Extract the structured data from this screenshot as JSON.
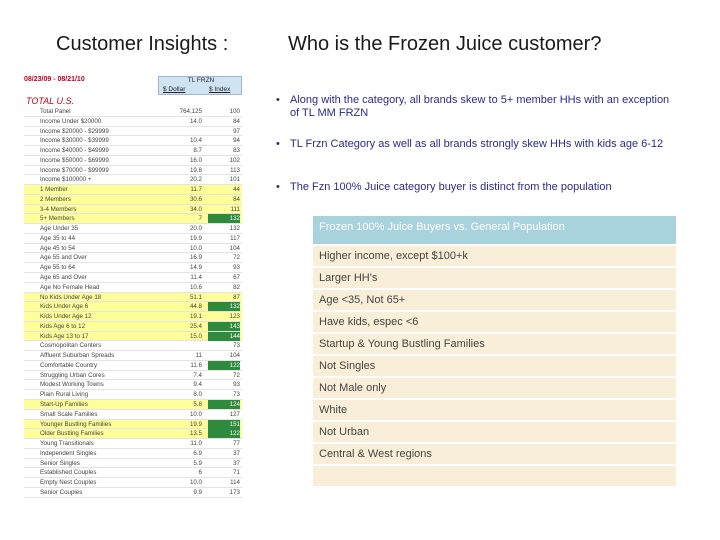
{
  "title": {
    "left": "Customer Insights :",
    "right": "Who is the Frozen Juice customer?"
  },
  "sheet": {
    "date_range": "08/23/09 - 08/21/10",
    "header_top": "TL FRZN",
    "header_col1": "$ Dollar",
    "header_col2": "$ Index",
    "total_label": "TOTAL U.S.",
    "rows": [
      {
        "label": "Total Panel",
        "v1": "764,125",
        "v2": "100",
        "yellow": false,
        "green": false
      },
      {
        "label": "Income Under $20000",
        "v1": "14.0",
        "v2": "84",
        "yellow": false,
        "green": false
      },
      {
        "label": "Income $20000 - $29999",
        "v1": "",
        "v2": "97",
        "yellow": false,
        "green": false
      },
      {
        "label": "Income $30000 - $39999",
        "v1": "10.4",
        "v2": "94",
        "yellow": false,
        "green": false
      },
      {
        "label": "Income $40000 - $49999",
        "v1": "8.7",
        "v2": "83",
        "yellow": false,
        "green": false
      },
      {
        "label": "Income $50000 - $69999",
        "v1": "16.0",
        "v2": "102",
        "yellow": false,
        "green": false
      },
      {
        "label": "Income $70000 - $99999",
        "v1": "19.8",
        "v2": "113",
        "yellow": false,
        "green": false
      },
      {
        "label": "Income $100000 +",
        "v1": "20.2",
        "v2": "101",
        "yellow": false,
        "green": false
      },
      {
        "label": "1 Member",
        "v1": "11.7",
        "v2": "44",
        "yellow": true,
        "green": false
      },
      {
        "label": "2 Members",
        "v1": "30.6",
        "v2": "84",
        "yellow": true,
        "green": false
      },
      {
        "label": "3-4 Members",
        "v1": "34.0",
        "v2": "111",
        "yellow": true,
        "green": false
      },
      {
        "label": "5+ Members",
        "v1": "7",
        "v2": "132",
        "yellow": true,
        "green": true
      },
      {
        "label": "Age Under 35",
        "v1": "20.0",
        "v2": "132",
        "yellow": false,
        "green": false
      },
      {
        "label": "Age 35 to 44",
        "v1": "19.9",
        "v2": "117",
        "yellow": false,
        "green": false
      },
      {
        "label": "Age 45 to 54",
        "v1": "10.0",
        "v2": "104",
        "yellow": false,
        "green": false
      },
      {
        "label": "Age 55 and Over",
        "v1": "16.9",
        "v2": "72",
        "yellow": false,
        "green": false
      },
      {
        "label": "Age 55 to 64",
        "v1": "14.9",
        "v2": "93",
        "yellow": false,
        "green": false
      },
      {
        "label": "Age 65 and Over",
        "v1": "11.4",
        "v2": "67",
        "yellow": false,
        "green": false
      },
      {
        "label": "Age No Female Head",
        "v1": "10.6",
        "v2": "82",
        "yellow": false,
        "green": false
      },
      {
        "label": "No Kids Under Age 18",
        "v1": "51.1",
        "v2": "87",
        "yellow": true,
        "green": false
      },
      {
        "label": "Kids Under Age 6",
        "v1": "44.8",
        "v2": "132",
        "yellow": true,
        "green": true
      },
      {
        "label": "Kids Under Age 12",
        "v1": "19.1",
        "v2": "123",
        "yellow": true,
        "green": false
      },
      {
        "label": "Kids Age 6 to 12",
        "v1": "25.4",
        "v2": "143",
        "yellow": true,
        "green": true
      },
      {
        "label": "Kids Age 13 to 17",
        "v1": "15.0",
        "v2": "144",
        "yellow": true,
        "green": true
      },
      {
        "label": "Cosmopolitan Centers",
        "v1": "",
        "v2": "73",
        "yellow": false,
        "green": false
      },
      {
        "label": "Affluent Suburban Spreads",
        "v1": "11",
        "v2": "104",
        "yellow": false,
        "green": false
      },
      {
        "label": "Comfortable Country",
        "v1": "11.6",
        "v2": "122",
        "yellow": false,
        "green": true
      },
      {
        "label": "Struggling Urban Cores",
        "v1": "7.4",
        "v2": "72",
        "yellow": false,
        "green": false
      },
      {
        "label": "Modest Working Towns",
        "v1": "9.4",
        "v2": "93",
        "yellow": false,
        "green": false
      },
      {
        "label": "Plain Rural Living",
        "v1": "8.0",
        "v2": "73",
        "yellow": false,
        "green": false
      },
      {
        "label": "Start-Up Families",
        "v1": "5.8",
        "v2": "124",
        "yellow": true,
        "green": true
      },
      {
        "label": "Small Scale Families",
        "v1": "10.0",
        "v2": "127",
        "yellow": false,
        "green": false
      },
      {
        "label": "Younger Bustling Families",
        "v1": "19.9",
        "v2": "151",
        "yellow": true,
        "green": true
      },
      {
        "label": "Older Bustling Families",
        "v1": "13.5",
        "v2": "122",
        "yellow": true,
        "green": true
      },
      {
        "label": "Young Transitionals",
        "v1": "11.0",
        "v2": "77",
        "yellow": false,
        "green": false
      },
      {
        "label": "Independent Singles",
        "v1": "6.9",
        "v2": "37",
        "yellow": false,
        "green": false
      },
      {
        "label": "Senior Singles",
        "v1": "5.9",
        "v2": "37",
        "yellow": false,
        "green": false
      },
      {
        "label": "Established Couples",
        "v1": "6",
        "v2": "71",
        "yellow": false,
        "green": false
      },
      {
        "label": "Empty Nest Couples",
        "v1": "10.0",
        "v2": "114",
        "yellow": false,
        "green": false
      },
      {
        "label": "Senior Couples",
        "v1": "9.9",
        "v2": "173",
        "yellow": false,
        "green": false
      }
    ]
  },
  "bullets": [
    "Along with the category, all brands skew to 5+ member HHs with an exception of TL MM FRZN",
    "TL Frzn Category as well as all brands strongly skew HHs with kids age 6-12",
    "The Fzn 100% Juice category buyer is distinct from the population"
  ],
  "comparison": {
    "header": "Frozen 100% Juice Buyers vs. General Population",
    "items": [
      "Higher income, except $100+k",
      "Larger HH's",
      "Age <35, Not 65+",
      "Have kids, espec <6",
      "Startup & Young Bustling Families",
      "Not Singles",
      "Not Male only",
      "White",
      "Not Urban",
      "Central & West regions",
      ""
    ]
  },
  "colors": {
    "title_text": "#1a1a1a",
    "bullet_text": "#2b2b8a",
    "red_label": "#c0001a",
    "yellow_row": "#ffff99",
    "green_cell": "#2e8b3e",
    "cmp_header": "#a9d3dc",
    "cmp_row": "#f9efd8"
  }
}
